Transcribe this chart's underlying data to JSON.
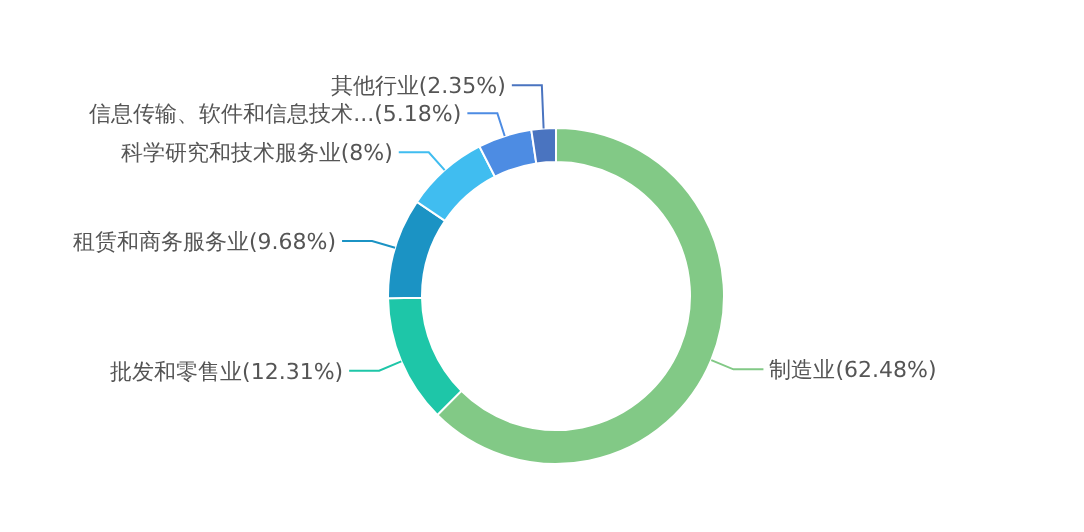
{
  "chart_data": {
    "type": "donut",
    "categories": [
      "制造业",
      "批发和零售业",
      "租赁和商务服务业",
      "科学研究和技术服务业",
      "信息传输、软件和信息技术...",
      "其他行业"
    ],
    "values": [
      62.48,
      12.31,
      9.68,
      8,
      5.18,
      2.35
    ],
    "value_labels": [
      "(62.48%)",
      "(12.31%)",
      "(9.68%)",
      "(8%)",
      "(5.18%)",
      "(2.35%)"
    ],
    "colors": [
      "#82c986",
      "#1ec6a8",
      "#1b93c4",
      "#40bdf0",
      "#4d8ce3",
      "#4a74c0"
    ],
    "legend": false
  }
}
